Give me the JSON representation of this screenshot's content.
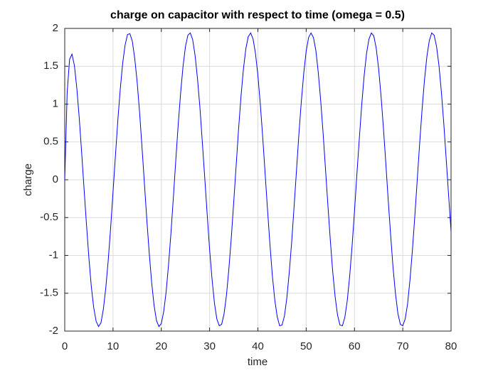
{
  "chart_data": {
    "type": "line",
    "title": "charge on capacitor with respect to time (omega = 0.5)",
    "x_label": "time",
    "y_label": "charge",
    "x": [
      0,
      0.5,
      1,
      1.5,
      2,
      2.5,
      3,
      3.5,
      4,
      4.5,
      5,
      5.5,
      6,
      6.5,
      7,
      7.5,
      8,
      8.5,
      9,
      9.5,
      10,
      10.5,
      11,
      11.5,
      12,
      12.5,
      13,
      13.5,
      14,
      14.5,
      15,
      15.5,
      16,
      16.5,
      17,
      17.5,
      18,
      18.5,
      19,
      19.5,
      20,
      20.5,
      21,
      21.5,
      22,
      22.5,
      23,
      23.5,
      24,
      24.5,
      25,
      25.5,
      26,
      26.5,
      27,
      27.5,
      28,
      28.5,
      29,
      29.5,
      30,
      30.5,
      31,
      31.5,
      32,
      32.5,
      33,
      33.5,
      34,
      34.5,
      35,
      35.5,
      36,
      36.5,
      37,
      37.5,
      38,
      38.5,
      39,
      39.5,
      40,
      40.5,
      41,
      41.5,
      42,
      42.5,
      43,
      43.5,
      44,
      44.5,
      45,
      45.5,
      46,
      46.5,
      47,
      47.5,
      48,
      48.5,
      49,
      49.5,
      50,
      50.5,
      51,
      51.5,
      52,
      52.5,
      53,
      53.5,
      54,
      54.5,
      55,
      55.5,
      56,
      56.5,
      57,
      57.5,
      58,
      58.5,
      59,
      59.5,
      60,
      60.5,
      61,
      61.5,
      62,
      62.5,
      63,
      63.5,
      64,
      64.5,
      65,
      65.5,
      66,
      66.5,
      67,
      67.5,
      68,
      68.5,
      69,
      69.5,
      70,
      70.5,
      71,
      71.5,
      72,
      72.5,
      73,
      73.5,
      74,
      74.5,
      75,
      75.5,
      76,
      76.5,
      77,
      77.5,
      78,
      78.5,
      79,
      79.5,
      80
    ],
    "series": [
      {
        "color": "#0000ff",
        "values": [
          0,
          1.15,
          1.59,
          1.66,
          1.51,
          1.21,
          0.82,
          0.36,
          -0.12,
          -0.59,
          -1.03,
          -1.41,
          -1.69,
          -1.87,
          -1.94,
          -1.89,
          -1.71,
          -1.43,
          -1.07,
          -0.64,
          -0.16,
          0.32,
          0.79,
          1.2,
          1.54,
          1.78,
          1.92,
          1.93,
          1.83,
          1.6,
          1.29,
          0.89,
          0.43,
          -0.05,
          -0.53,
          -0.97,
          -1.36,
          -1.66,
          -1.86,
          -1.94,
          -1.9,
          -1.74,
          -1.48,
          -1.12,
          -0.7,
          -0.23,
          0.26,
          0.73,
          1.15,
          1.5,
          1.76,
          1.91,
          1.94,
          1.85,
          1.64,
          1.33,
          0.95,
          0.49,
          0.02,
          -0.46,
          -0.92,
          -1.31,
          -1.63,
          -1.84,
          -1.93,
          -1.91,
          -1.77,
          -1.52,
          -1.17,
          -0.76,
          -0.29,
          0.19,
          0.67,
          1.1,
          1.46,
          1.73,
          1.89,
          1.94,
          1.86,
          1.67,
          1.38,
          1,
          0.56,
          0.08,
          -0.4,
          -0.86,
          -1.27,
          -1.59,
          -1.81,
          -1.93,
          -1.92,
          -1.8,
          -1.56,
          -1.22,
          -0.82,
          -0.35,
          0.13,
          0.61,
          1.04,
          1.41,
          1.7,
          1.88,
          1.94,
          1.88,
          1.71,
          1.42,
          1.05,
          0.62,
          0.14,
          -0.34,
          -0.8,
          -1.22,
          -1.55,
          -1.79,
          -1.92,
          -1.93,
          -1.82,
          -1.6,
          -1.28,
          -0.88,
          -0.42,
          0.07,
          0.54,
          0.99,
          1.37,
          1.67,
          1.86,
          1.94,
          1.9,
          1.74,
          1.47,
          1.11,
          0.68,
          0.21,
          -0.28,
          -0.74,
          -1.17,
          -1.51,
          -1.77,
          -1.91,
          -1.93,
          -1.84,
          -1.64,
          -1.32,
          -0.93,
          -0.48,
          0,
          0.48,
          0.93,
          1.32,
          1.63,
          1.84,
          1.94,
          1.91,
          1.76,
          1.51,
          1.16,
          0.74,
          0.27,
          -0.21,
          -0.68
        ]
      }
    ],
    "xlim": [
      0,
      80
    ],
    "xticks": [
      0,
      10,
      20,
      30,
      40,
      50,
      60,
      70,
      80
    ],
    "ylim": [
      -2,
      2
    ],
    "yticks": [
      -2,
      -1.5,
      -1,
      -0.5,
      0,
      0.5,
      1,
      1.5,
      2
    ],
    "grid": true
  }
}
